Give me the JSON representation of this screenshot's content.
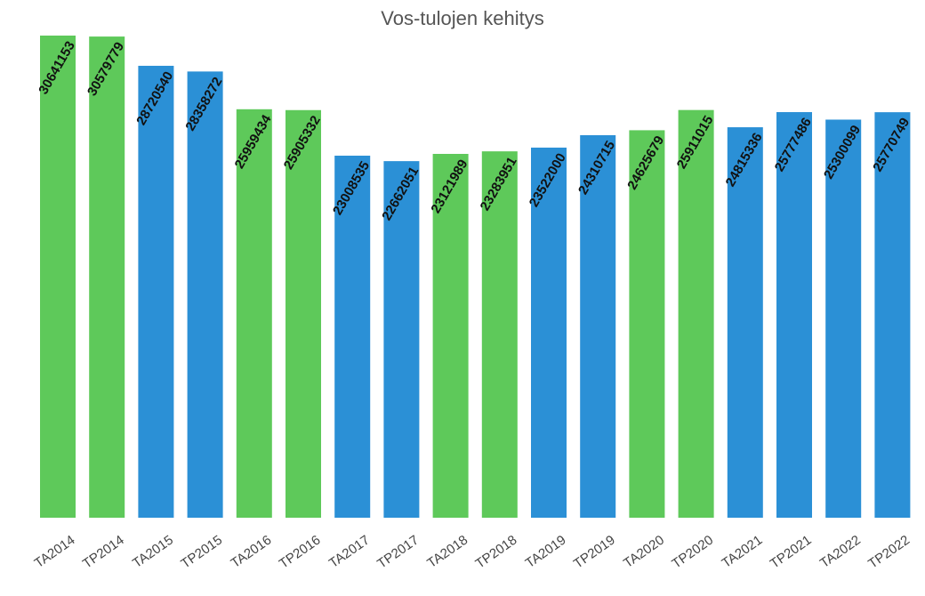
{
  "chart_data": {
    "type": "bar",
    "title": "Vos-tulojen kehitys",
    "categories": [
      "TA2014",
      "TP2014",
      "TA2015",
      "TP2015",
      "TA2016",
      "TP2016",
      "TA2017",
      "TP2017",
      "TA2018",
      "TP2018",
      "TA2019",
      "TP2019",
      "TA2020",
      "TP2020",
      "TA2021",
      "TP2021",
      "TA2022",
      "TP2022"
    ],
    "values": [
      30641153,
      30579779,
      28720540,
      28358272,
      25959434,
      25905332,
      23008535,
      22662051,
      23121989,
      23283951,
      23522000,
      24310715,
      24625679,
      25911015,
      24815336,
      25777486,
      25300099,
      25770749
    ],
    "colors": [
      "#5ec95a",
      "#5ec95a",
      "#2b90d6",
      "#2b90d6",
      "#5ec95a",
      "#5ec95a",
      "#2b90d6",
      "#2b90d6",
      "#5ec95a",
      "#5ec95a",
      "#2b90d6",
      "#2b90d6",
      "#5ec95a",
      "#5ec95a",
      "#2b90d6",
      "#2b90d6",
      "#2b90d6",
      "#2b90d6"
    ]
  }
}
